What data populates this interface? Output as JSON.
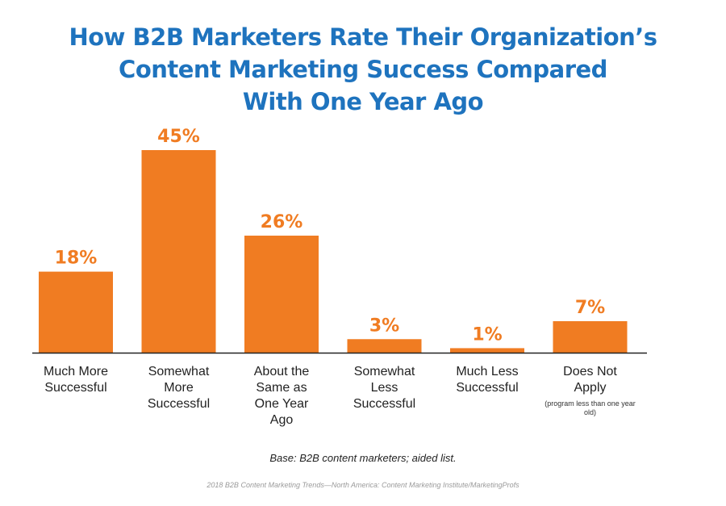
{
  "chart_data": {
    "type": "bar",
    "title": [
      "How B2B Marketers Rate Their Organization’s",
      "Content Marketing Success Compared",
      "With One Year Ago"
    ],
    "categories": [
      [
        "Much More",
        "Successful"
      ],
      [
        "Somewhat",
        "More",
        "Successful"
      ],
      [
        "About the",
        "Same as",
        "One Year",
        "Ago"
      ],
      [
        "Somewhat",
        "Less",
        "Successful"
      ],
      [
        "Much Less",
        "Successful"
      ],
      [
        "Does Not",
        "Apply"
      ]
    ],
    "category_notes": [
      "",
      "",
      "",
      "",
      "",
      "(program less than one year old)"
    ],
    "values": [
      18,
      45,
      26,
      3,
      1,
      7
    ],
    "data_labels": [
      "18%",
      "45%",
      "26%",
      "3%",
      "1%",
      "7%"
    ],
    "unit": "%",
    "ylim": [
      0,
      45
    ],
    "bar_color": "#f07c22",
    "label_color": "#f07c22",
    "title_color": "#1e73be",
    "grid": false,
    "legend": "none"
  },
  "notes": {
    "base": "Base: B2B content marketers; aided list.",
    "source": "2018 B2B Content Marketing Trends—North America: Content Marketing Institute/MarketingProfs"
  }
}
